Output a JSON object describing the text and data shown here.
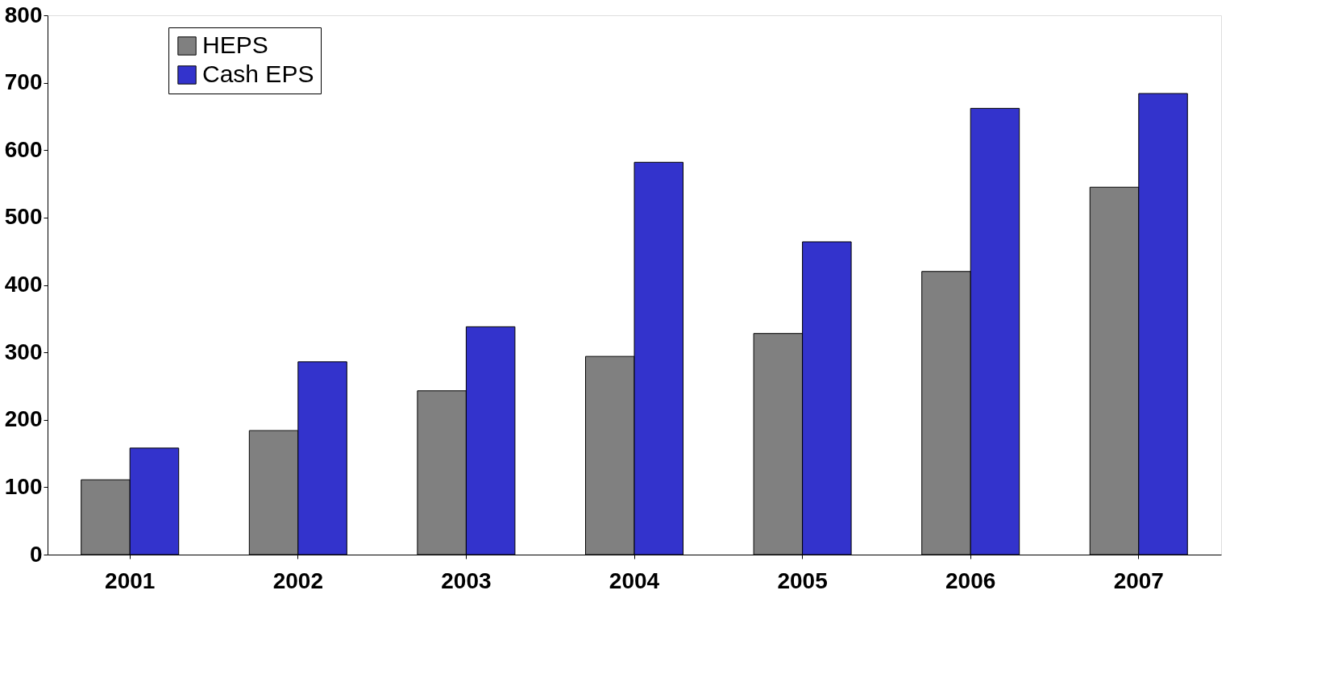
{
  "chart_data": {
    "type": "bar",
    "categories": [
      "2001",
      "2002",
      "2003",
      "2004",
      "2005",
      "2006",
      "2007"
    ],
    "series": [
      {
        "name": "HEPS",
        "color": "#808080",
        "values": [
          111,
          184,
          243,
          294,
          328,
          420,
          545
        ]
      },
      {
        "name": "Cash EPS",
        "color": "#3333cc",
        "values": [
          158,
          286,
          338,
          582,
          464,
          662,
          684
        ]
      }
    ],
    "ylim": [
      0,
      800
    ],
    "yticks": [
      0,
      100,
      200,
      300,
      400,
      500,
      600,
      700,
      800
    ],
    "grid": false,
    "legend": "top left"
  }
}
